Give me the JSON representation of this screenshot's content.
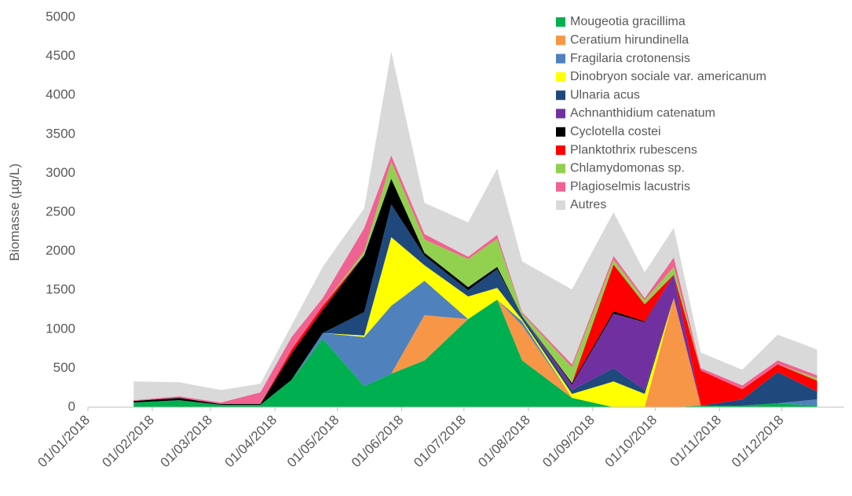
{
  "chart_data": {
    "type": "stacked-area",
    "y_label": "Biomasse (µg/L)",
    "x": [
      "23/01/2018",
      "14/02/2018",
      "06/03/2018",
      "25/03/2018",
      "09/04/2018",
      "24/04/2018",
      "14/05/2018",
      "27/05/2018",
      "12/06/2018",
      "03/07/2018",
      "17/07/2018",
      "29/07/2018",
      "22/08/2018",
      "11/09/2018",
      "26/09/2018",
      "10/10/2018",
      "23/10/2018",
      "12/11/2018",
      "29/11/2018",
      "18/12/2018"
    ],
    "xlim": [
      "01/01/2018",
      "31/12/2018"
    ],
    "xticks": [
      "01/01/2018",
      "01/02/2018",
      "01/03/2018",
      "01/04/2018",
      "01/05/2018",
      "01/06/2018",
      "01/07/2018",
      "01/08/2018",
      "01/09/2018",
      "01/10/2018",
      "01/11/2018",
      "01/12/2018"
    ],
    "ylim": [
      0,
      5000
    ],
    "yticks": [
      0,
      500,
      1000,
      1500,
      2000,
      2500,
      3000,
      3500,
      4000,
      4500,
      5000
    ],
    "grid": false,
    "legend": "upper right",
    "series": [
      {
        "name": "Mougeotia gracillima",
        "color": "#00b050",
        "values": [
          60,
          90,
          30,
          30,
          350,
          880,
          270,
          430,
          600,
          1130,
          1380,
          600,
          120,
          0,
          0,
          0,
          20,
          20,
          50,
          20
        ]
      },
      {
        "name": "Ceratium hirundinella",
        "color": "#f79646",
        "values": [
          0,
          0,
          0,
          0,
          0,
          0,
          0,
          0,
          580,
          0,
          0,
          450,
          0,
          0,
          0,
          1400,
          0,
          0,
          0,
          0
        ]
      },
      {
        "name": "Fragilaria crotonensis",
        "color": "#4f81bd",
        "values": [
          0,
          0,
          0,
          0,
          0,
          70,
          630,
          870,
          440,
          0,
          0,
          50,
          0,
          0,
          0,
          0,
          0,
          0,
          0,
          80
        ]
      },
      {
        "name": "Dinobryon sociale var. americanum",
        "color": "#ffff00",
        "values": [
          0,
          0,
          0,
          0,
          0,
          0,
          20,
          880,
          200,
          290,
          150,
          20,
          50,
          330,
          170,
          0,
          0,
          0,
          0,
          0
        ]
      },
      {
        "name": "Ulnaria acus",
        "color": "#1f497d",
        "values": [
          0,
          0,
          0,
          0,
          0,
          0,
          300,
          420,
          120,
          80,
          240,
          50,
          50,
          170,
          50,
          0,
          0,
          80,
          400,
          100
        ]
      },
      {
        "name": "Achnanthidium catenatum",
        "color": "#7030a0",
        "values": [
          0,
          0,
          0,
          0,
          0,
          0,
          0,
          0,
          0,
          0,
          0,
          0,
          70,
          700,
          870,
          300,
          0,
          0,
          0,
          0
        ]
      },
      {
        "name": "Cyclotella costei",
        "color": "#000000",
        "values": [
          20,
          30,
          10,
          10,
          340,
          300,
          730,
          330,
          40,
          40,
          30,
          0,
          20,
          30,
          10,
          0,
          0,
          0,
          0,
          0
        ]
      },
      {
        "name": "Planktothrix rubescens",
        "color": "#ff0000",
        "values": [
          0,
          0,
          0,
          0,
          50,
          50,
          0,
          0,
          0,
          0,
          0,
          0,
          0,
          600,
          220,
          0,
          450,
          130,
          100,
          140
        ]
      },
      {
        "name": "Chlamydomonas sp.",
        "color": "#92d050",
        "values": [
          0,
          0,
          0,
          0,
          0,
          0,
          50,
          220,
          170,
          360,
          360,
          30,
          200,
          60,
          50,
          100,
          0,
          0,
          0,
          30
        ]
      },
      {
        "name": "Plagioselmis lacustris",
        "color": "#f06292",
        "values": [
          10,
          20,
          20,
          150,
          160,
          100,
          300,
          80,
          70,
          30,
          50,
          20,
          40,
          50,
          30,
          120,
          30,
          50,
          50,
          40
        ]
      },
      {
        "name": "Autres",
        "color": "#d9d9d9",
        "values": [
          240,
          180,
          160,
          110,
          150,
          400,
          250,
          1330,
          400,
          440,
          850,
          650,
          960,
          560,
          330,
          380,
          200,
          200,
          330,
          330
        ]
      }
    ]
  }
}
